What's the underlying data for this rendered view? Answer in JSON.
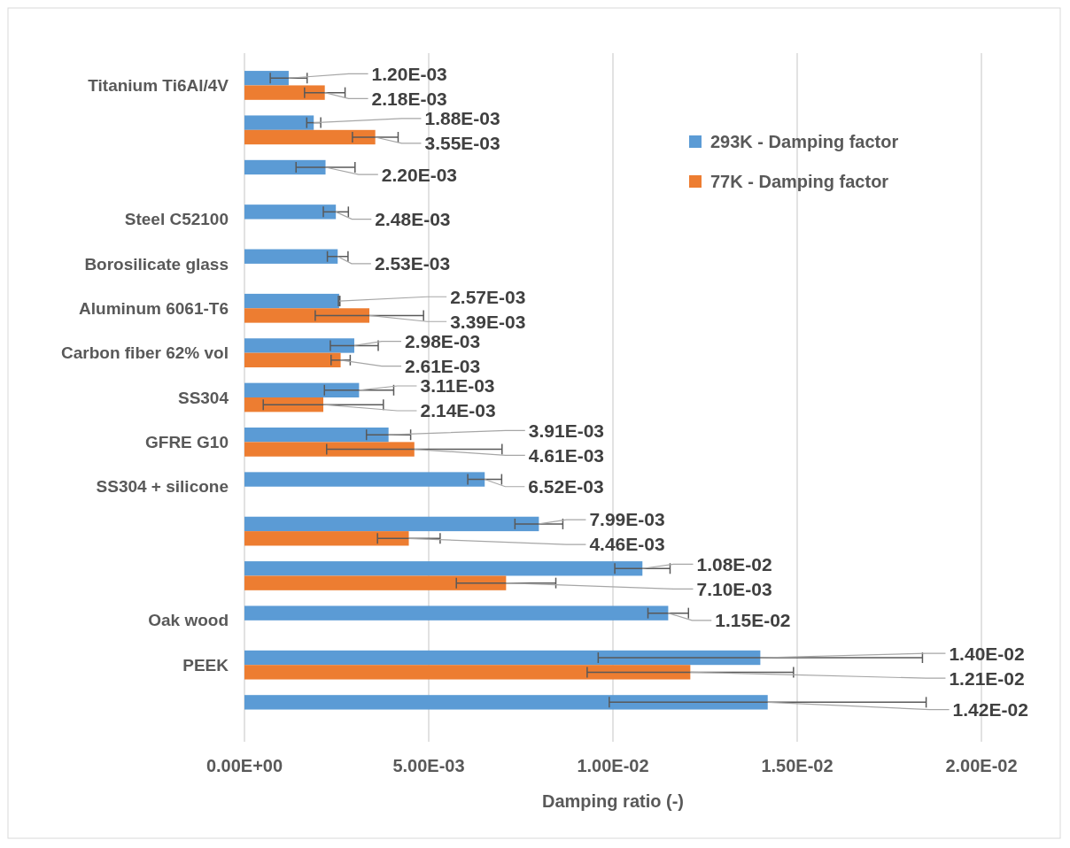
{
  "chart_data": {
    "type": "bar",
    "orientation": "horizontal",
    "xlabel": "Damping ratio (-)",
    "categories": [
      "Titanium Ti6Al/4V",
      null,
      null,
      "Steel C52100",
      "Borosilicate glass",
      "Aluminum 6061-T6",
      "Carbon fiber 62% vol",
      "SS304",
      "GFRE G10",
      "SS304 + silicone",
      null,
      null,
      "Oak wood",
      "PEEK",
      null
    ],
    "series": [
      {
        "name": "293K - Damping factor",
        "color": "#5b9bd5",
        "values": [
          0.0012,
          0.00188,
          0.0022,
          0.00248,
          0.00253,
          0.00257,
          0.00298,
          0.00311,
          0.00391,
          0.00652,
          0.00799,
          0.0108,
          0.0115,
          0.014,
          0.0142
        ],
        "errors": [
          0.0005,
          0.00019,
          0.0008,
          0.00034,
          0.00028,
          2e-05,
          0.00065,
          0.00094,
          0.0006,
          0.00046,
          0.00065,
          0.00075,
          0.00055,
          0.0044,
          0.0043
        ],
        "value_labels": [
          "1.20E-03",
          "1.88E-03",
          "2.20E-03",
          "2.48E-03",
          "2.53E-03",
          "2.57E-03",
          "2.98E-03",
          "3.11E-03",
          "3.91E-03",
          "6.52E-03",
          "7.99E-03",
          "1.08E-02",
          "1.15E-02",
          "1.40E-02",
          "1.42E-02"
        ]
      },
      {
        "name": "77K - Damping factor",
        "color": "#ed7d31",
        "values": [
          0.00218,
          0.00355,
          null,
          null,
          null,
          0.00339,
          0.00261,
          0.00214,
          0.00461,
          null,
          0.00446,
          0.0071,
          null,
          0.0121,
          null
        ],
        "errors": [
          0.00055,
          0.00062,
          null,
          null,
          null,
          0.00147,
          0.00026,
          0.00163,
          0.00238,
          null,
          0.00085,
          0.00135,
          null,
          0.0028,
          null
        ],
        "value_labels": [
          "2.18E-03",
          "3.55E-03",
          null,
          null,
          null,
          "3.39E-03",
          "2.61E-03",
          "2.14E-03",
          "4.61E-03",
          null,
          "4.46E-03",
          "7.10E-03",
          null,
          "1.21E-02",
          null
        ]
      }
    ],
    "xlim": [
      0,
      0.02
    ],
    "xticks": [
      {
        "value": 0,
        "label": "0.00E+00"
      },
      {
        "value": 0.005,
        "label": "5.00E-03"
      },
      {
        "value": 0.01,
        "label": "1.00E-02"
      },
      {
        "value": 0.015,
        "label": "1.50E-02"
      },
      {
        "value": 0.02,
        "label": "2.00E-02"
      }
    ],
    "grid": "x",
    "legend": "top right"
  }
}
